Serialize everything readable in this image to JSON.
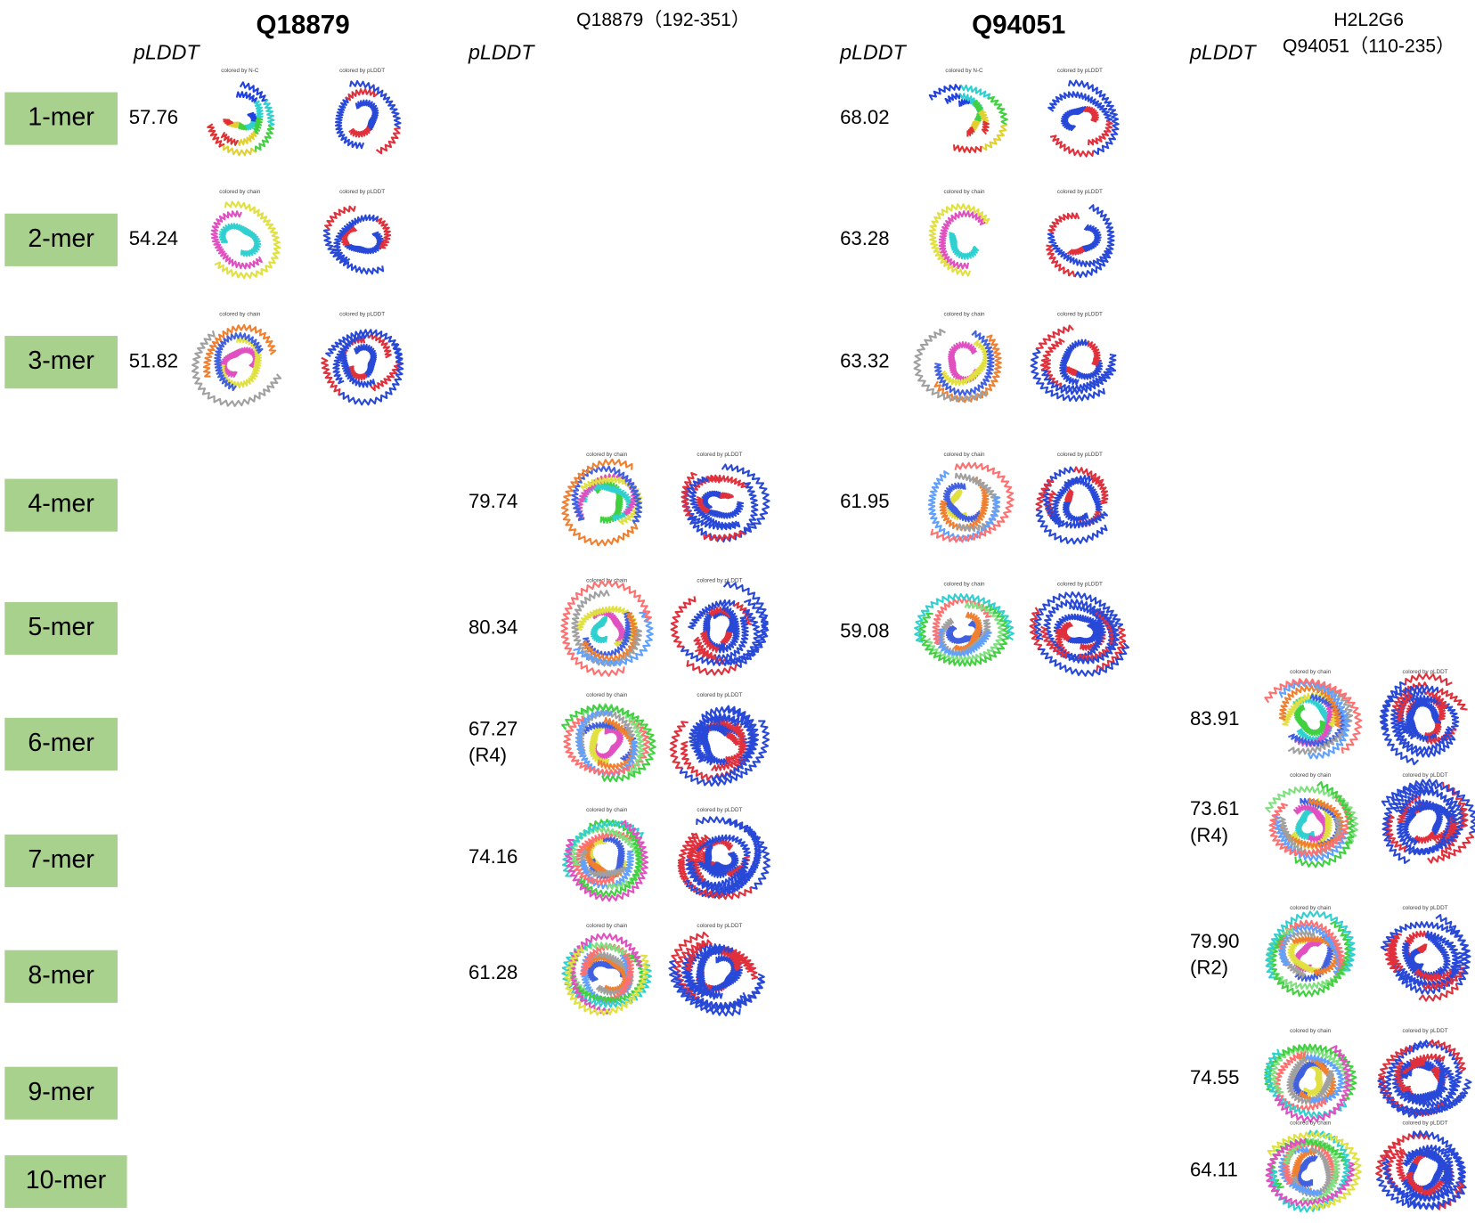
{
  "header": {
    "columns": [
      {
        "title": "Q18879",
        "plddt": "pLDDT"
      },
      {
        "title": "Q18879（192-351）",
        "plddt": "pLDDT"
      },
      {
        "title": "Q94051",
        "plddt": "pLDDT"
      },
      {
        "title": "H2L2G6",
        "subtitle": "Q94051（110-235）",
        "plddt": "pLDDT"
      }
    ]
  },
  "rows": [
    "1-mer",
    "2-mer",
    "3-mer",
    "4-mer",
    "5-mer",
    "6-mer",
    "7-mer",
    "8-mer",
    "9-mer",
    "10-mer"
  ],
  "columns": [
    {
      "cells": [
        {
          "value": "57.76",
          "captions": [
            "colored by N-C",
            "colored by pLDDT"
          ]
        },
        {
          "value": "54.24",
          "captions": [
            "colored by chain",
            "colored by pLDDT"
          ]
        },
        {
          "value": "51.82",
          "captions": [
            "colored by chain",
            "colored by pLDDT"
          ]
        }
      ]
    },
    {
      "cells": [
        {
          "value": "79.74",
          "captions": [
            "colored by chain",
            "colored by pLDDT"
          ]
        },
        {
          "value": "80.34",
          "captions": [
            "colored by chain",
            "colored by pLDDT"
          ]
        },
        {
          "value": "67.27",
          "note": "(R4)",
          "captions": [
            "colored by chain",
            "colored by pLDDT"
          ]
        },
        {
          "value": "74.16",
          "captions": [
            "colored by chain",
            "colored by pLDDT"
          ]
        },
        {
          "value": "61.28",
          "captions": [
            "colored by chain",
            "colored by pLDDT"
          ]
        }
      ]
    },
    {
      "cells": [
        {
          "value": "68.02",
          "captions": [
            "colored by N-C",
            "colored by pLDDT"
          ]
        },
        {
          "value": "63.28",
          "captions": [
            "colored by chain",
            "colored by pLDDT"
          ]
        },
        {
          "value": "63.32",
          "captions": [
            "colored by chain",
            "colored by pLDDT"
          ]
        },
        {
          "value": "61.95",
          "captions": [
            "colored by chain",
            "colored by pLDDT"
          ]
        },
        {
          "value": "59.08",
          "captions": [
            "colored by chain",
            "colored by pLDDT"
          ]
        }
      ]
    },
    {
      "cells": [
        {
          "value": "83.91",
          "captions": [
            "colored by chain",
            "colored by pLDDT"
          ]
        },
        {
          "value": "73.61",
          "note": "(R4)",
          "captions": [
            "colored by chain",
            "colored by pLDDT"
          ]
        },
        {
          "value": "79.90",
          "note": "(R2)",
          "captions": [
            "colored by chain",
            "colored by pLDDT"
          ]
        },
        {
          "value": "74.55",
          "captions": [
            "colored by chain",
            "colored by pLDDT"
          ]
        },
        {
          "value": "64.11",
          "captions": [
            "colored by chain",
            "colored by pLDDT"
          ]
        }
      ]
    }
  ]
}
